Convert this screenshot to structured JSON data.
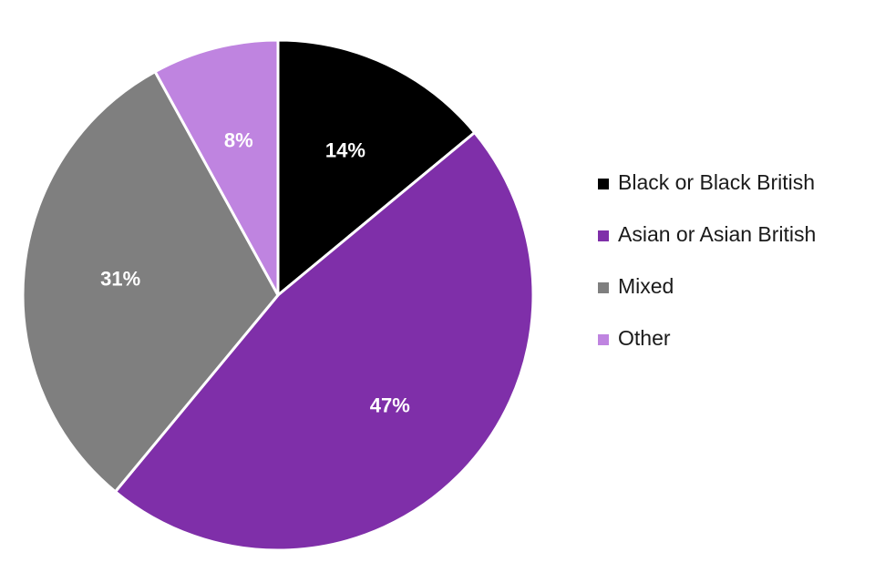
{
  "chart_data": {
    "type": "pie",
    "title": "",
    "categories": [
      "Black or Black British",
      "Asian or Asian British",
      "Mixed",
      "Other"
    ],
    "values": [
      14,
      47,
      31,
      8
    ],
    "data_labels": [
      "14%",
      "47%",
      "31%",
      "8%"
    ],
    "colors": [
      "#000000",
      "#7f2fa9",
      "#7f7f7f",
      "#bf84e0"
    ],
    "start_angle_deg": 0,
    "direction": "clockwise",
    "legend_position": "right"
  }
}
